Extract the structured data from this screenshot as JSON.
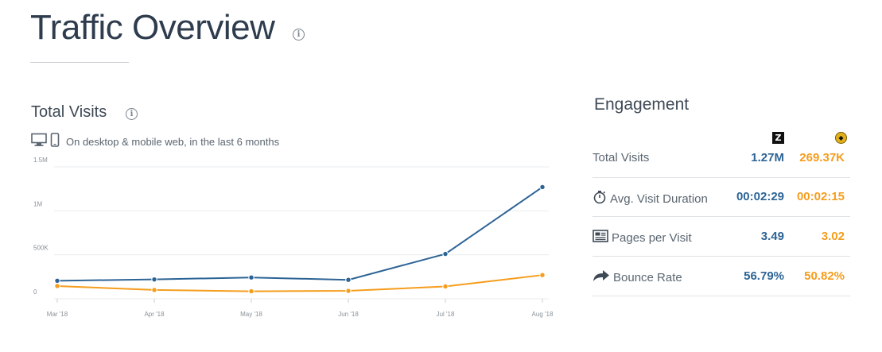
{
  "page": {
    "title": "Traffic Overview",
    "info_icon": "info-icon"
  },
  "visits": {
    "title": "Total Visits",
    "subtitle": "On desktop & mobile web, in the last 6 months",
    "icons": [
      "desktop-icon",
      "mobile-icon"
    ]
  },
  "chart_data": {
    "type": "line",
    "categories": [
      "Mar '18",
      "Apr '18",
      "May '18",
      "Jun '18",
      "Jul '18",
      "Aug '18"
    ],
    "series": [
      {
        "color": "#2d6496",
        "values": [
          205000,
          220000,
          242000,
          215000,
          510000,
          1270000
        ]
      },
      {
        "color": "#f59d1d",
        "values": [
          145000,
          100000,
          85000,
          90000,
          140000,
          269370
        ]
      }
    ],
    "y_ticks": [
      {
        "value": 0,
        "label": "0"
      },
      {
        "value": 500000,
        "label": "500K"
      },
      {
        "value": 1000000,
        "label": "1M"
      },
      {
        "value": 1500000,
        "label": "1.5M"
      }
    ],
    "ylim": [
      0,
      1500000
    ],
    "grid": true
  },
  "engagement": {
    "title": "Engagement",
    "site_icons": [
      "site-a-logo",
      "site-b-logo"
    ],
    "site_a_letter": "Z",
    "rows": [
      {
        "label": "Total Visits",
        "icon": "",
        "v1": "1.27M",
        "v2": "269.37K"
      },
      {
        "label": "Avg. Visit Duration",
        "icon": "stopwatch-icon",
        "v1": "00:02:29",
        "v2": "00:02:15"
      },
      {
        "label": "Pages per Visit",
        "icon": "pages-icon",
        "v1": "3.49",
        "v2": "3.02"
      },
      {
        "label": "Bounce Rate",
        "icon": "bounce-arrow-icon",
        "v1": "56.79%",
        "v2": "50.82%"
      }
    ],
    "colors": {
      "site_a": "#2d6496",
      "site_b": "#f59d1d"
    }
  }
}
